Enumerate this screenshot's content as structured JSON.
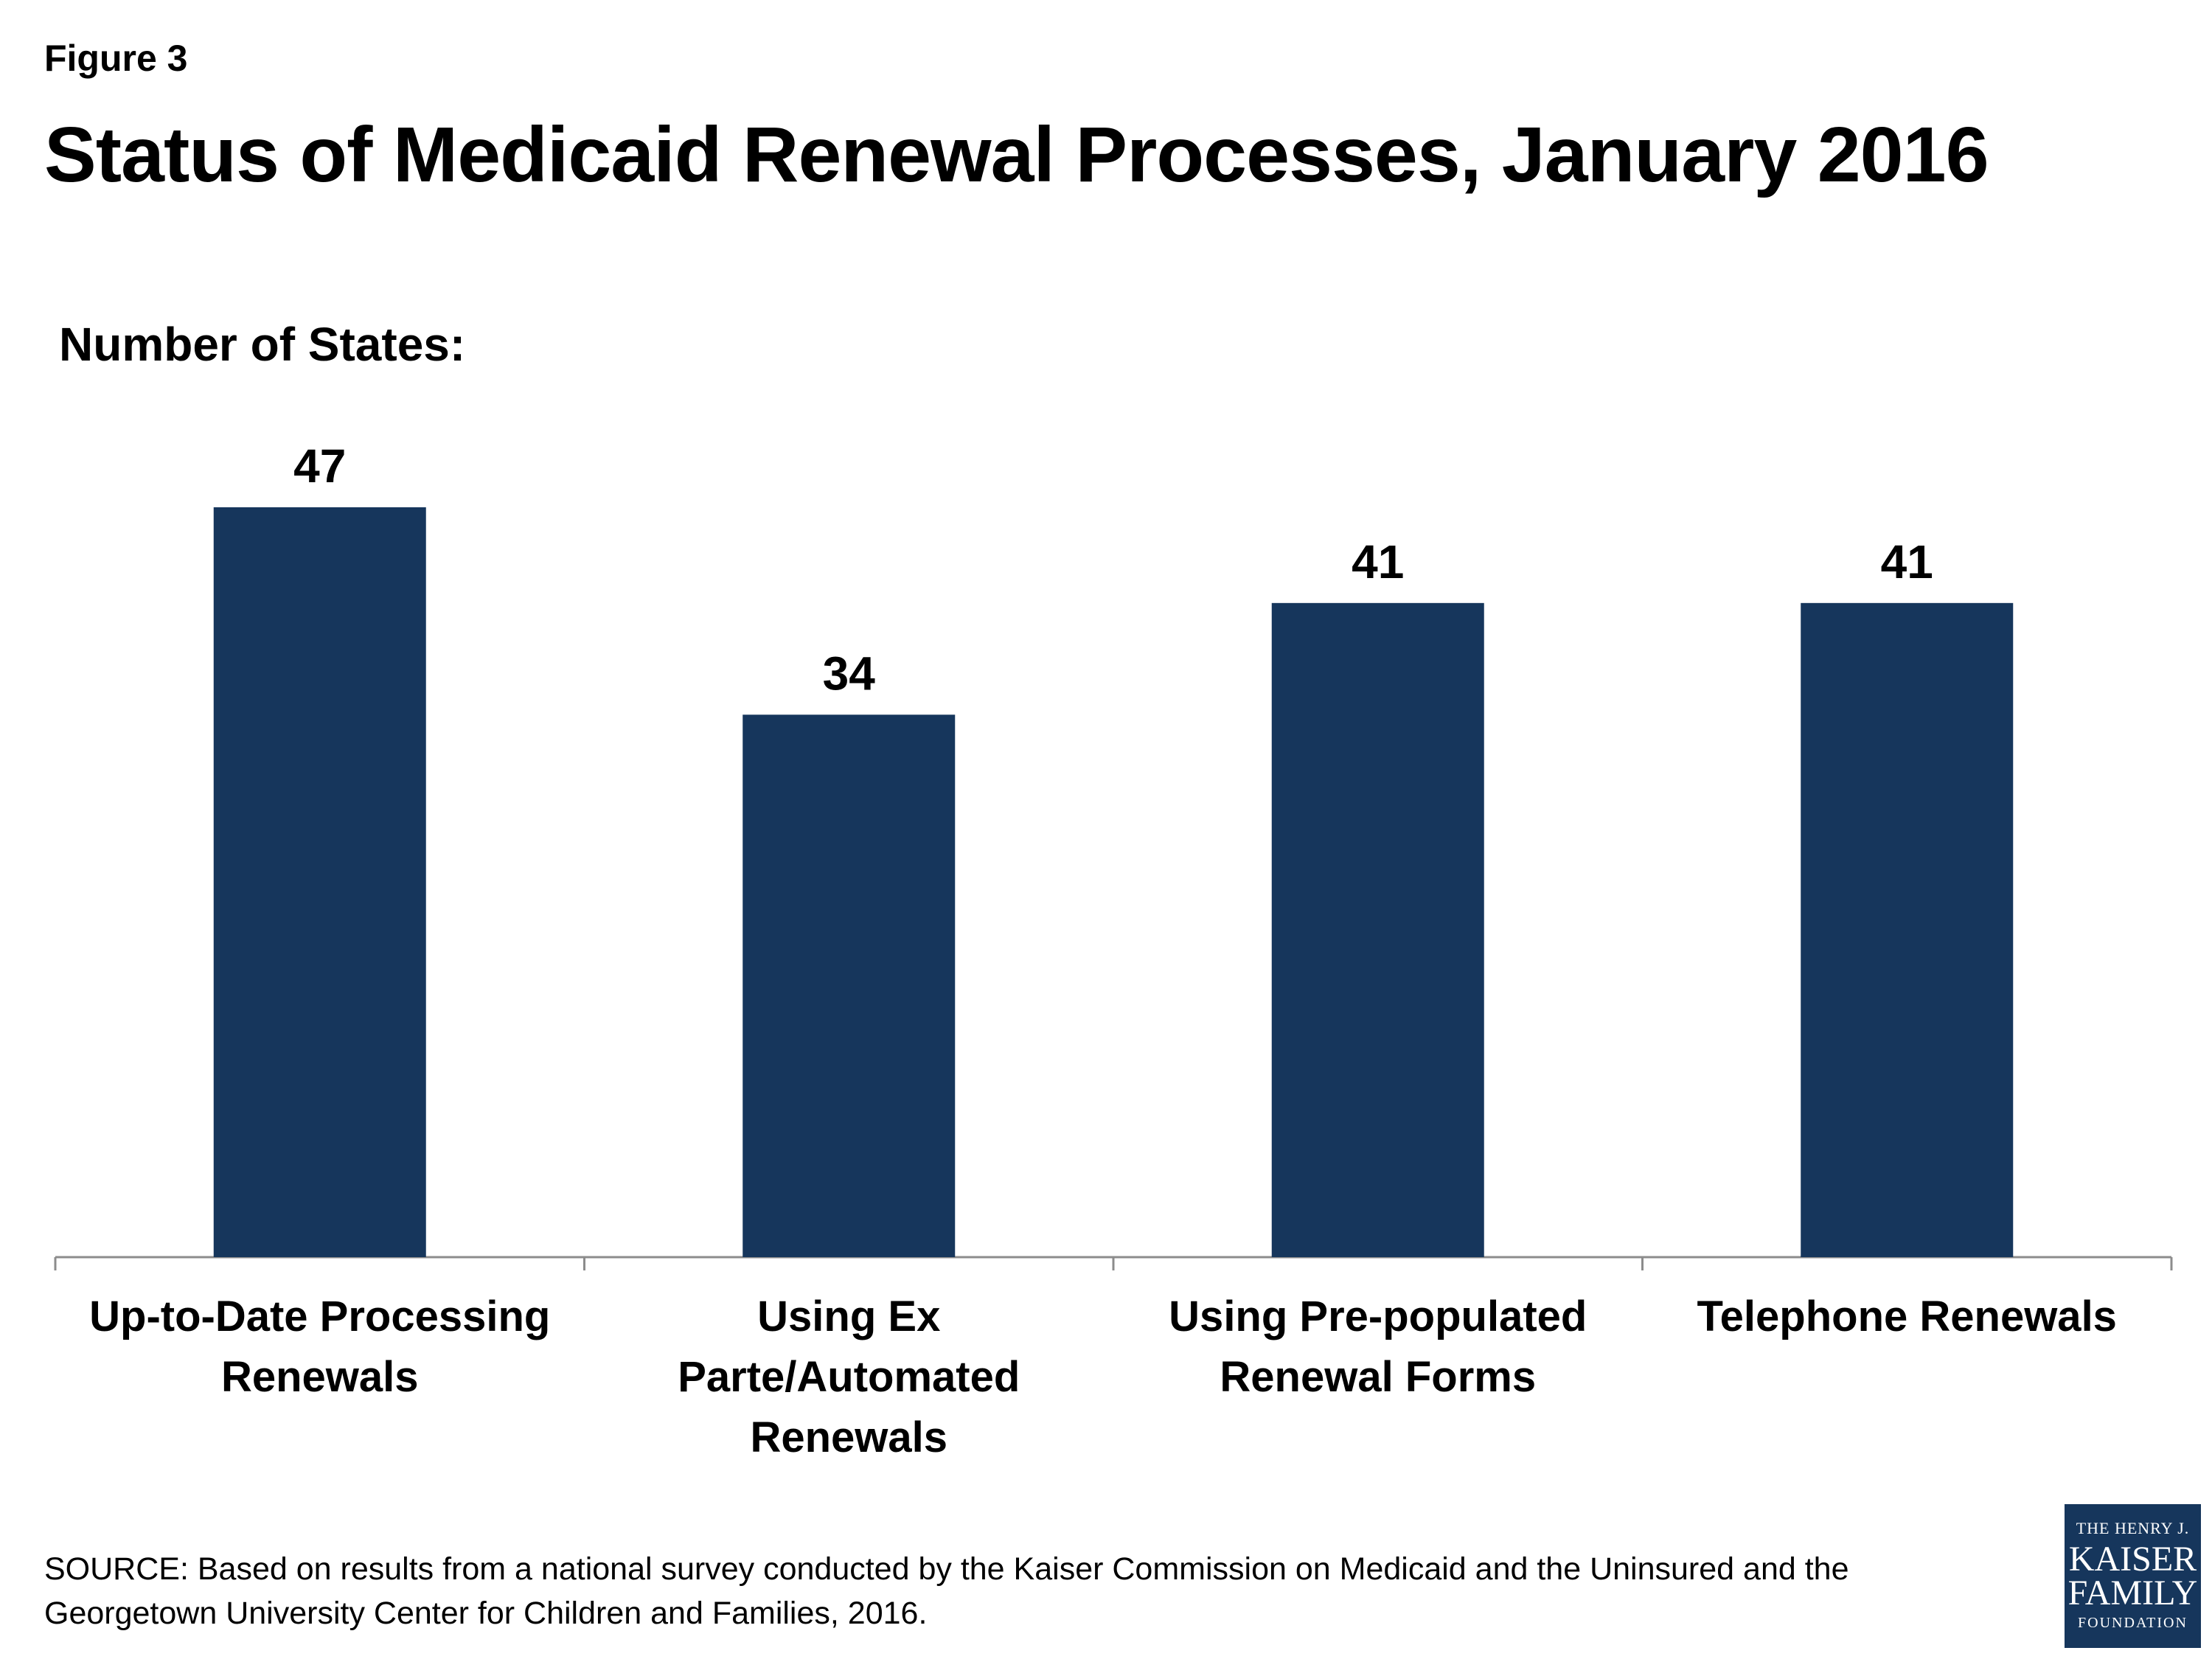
{
  "figure_label": "Figure 3",
  "colors": {
    "bar": "#16365c",
    "axis": "#8c8c8c"
  },
  "chart_data": {
    "type": "bar",
    "title": "Status of Medicaid Renewal Processes, January 2016",
    "subtitle": "Number of States:",
    "categories": [
      "Up-to-Date Processing Renewals",
      "Using Ex Parte/Automated Renewals",
      "Using Pre-populated Renewal Forms",
      "Telephone Renewals"
    ],
    "values": [
      47,
      34,
      41,
      41
    ],
    "data_labels": [
      "47",
      "34",
      "41",
      "41"
    ],
    "ylim": [
      0,
      50
    ],
    "xlabel": "",
    "ylabel": "",
    "grid": false
  },
  "source": "SOURCE: Based on results from a national survey conducted by the Kaiser Commission on Medicaid and the Uninsured and the Georgetown University Center for Children and Families, 2016.",
  "logo": {
    "line1": "THE HENRY J.",
    "line2": "KAISER",
    "line3": "FAMILY",
    "line4": "FOUNDATION"
  }
}
